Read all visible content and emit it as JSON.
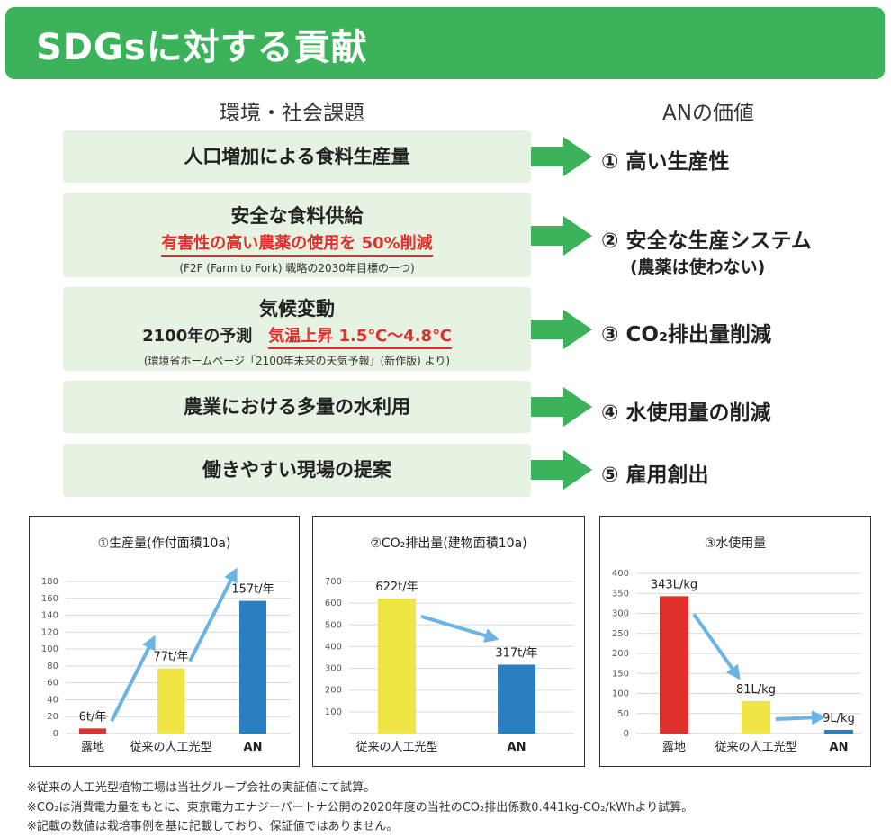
{
  "banner": {
    "title": "SDGsに対する貢献"
  },
  "columns": {
    "left": "環境・社会課題",
    "right": "ANの価値"
  },
  "issues": [
    {
      "main": "人口増加による食料生産量"
    },
    {
      "main": "安全な食料供給",
      "red": "有害性の高い農薬の使用を 50%削減",
      "note": "(F2F (Farm to Fork) 戦略の2030年目標の一つ)"
    },
    {
      "main": "気候変動",
      "line2_prefix": "2100年の予測",
      "red": "気温上昇 1.5℃～4.8℃",
      "note": "(環境省ホームページ「2100年未来の天気予報」(新作版) より)"
    },
    {
      "main": "農業における多量の水利用"
    },
    {
      "main": "働きやすい現場の提案"
    }
  ],
  "values": [
    {
      "label": "① 高い生産性"
    },
    {
      "label": "② 安全な生産システム",
      "sub": "(農薬は使わない)"
    },
    {
      "label": "③ CO₂排出量削減"
    },
    {
      "label": "④ 水使用量の削減"
    },
    {
      "label": "⑤ 雇用創出"
    }
  ],
  "colors": {
    "green": "#3cb35a",
    "light_green": "#e6f2e2",
    "red": "#e0302c",
    "yellow": "#f0e543",
    "blue": "#2a7fc1",
    "light_blue": "#6ab4e4"
  },
  "chart_data": [
    {
      "type": "bar",
      "title": "①生産量(作付面積10a)",
      "categories": [
        "露地",
        "従来の人工光型",
        "AN"
      ],
      "values": [
        6,
        77,
        157
      ],
      "data_labels": [
        "6t/年",
        "77t/年",
        "157t/年"
      ],
      "bar_colors": [
        "#e0302c",
        "#f0e543",
        "#2a7fc1"
      ],
      "ylim": [
        0,
        180
      ],
      "yticks": [
        0,
        20,
        40,
        60,
        80,
        100,
        120,
        140,
        160,
        180
      ],
      "grid": true,
      "arrows": "upward between bars"
    },
    {
      "type": "bar",
      "title": "②CO₂排出量(建物面積10a)",
      "categories": [
        "従来の人工光型",
        "AN"
      ],
      "values": [
        622,
        317
      ],
      "data_labels": [
        "622t/年",
        "317t/年"
      ],
      "bar_colors": [
        "#f0e543",
        "#2a7fc1"
      ],
      "ylim": [
        0,
        700
      ],
      "yticks": [
        100,
        200,
        300,
        400,
        500,
        600,
        700
      ],
      "grid": true,
      "arrows": "downward between bars"
    },
    {
      "type": "bar",
      "title": "③水使用量",
      "categories": [
        "露地",
        "従来の人工光型",
        "AN"
      ],
      "values": [
        343,
        81,
        9
      ],
      "data_labels": [
        "343L/kg",
        "81L/kg",
        "9L/kg"
      ],
      "bar_colors": [
        "#e0302c",
        "#f0e543",
        "#2a7fc1"
      ],
      "ylim": [
        0,
        400
      ],
      "yticks": [
        0,
        50,
        100,
        150,
        200,
        250,
        300,
        350,
        400
      ],
      "grid": true,
      "arrows": "downward between bars"
    }
  ],
  "footnotes": [
    "※従来の人工光型植物工場は当社グループ会社の実証値にて試算。",
    "※CO₂は消費電力量をもとに、東京電力エナジーパートナ公開の2020年度の当社のCO₂排出係数0.441kg-CO₂/kWhより試算。",
    "※記載の数値は栽培事例を基に記載しており、保証値ではありません。"
  ]
}
